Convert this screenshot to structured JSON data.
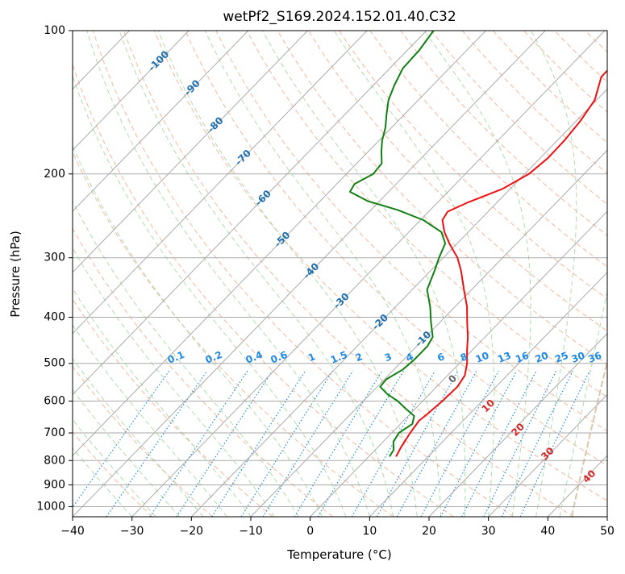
{
  "chart_data": {
    "type": "line",
    "subtype": "skew-t log-p diagram",
    "title": "wetPf2_S169.2024.152.01.40.C32",
    "xlabel": "Temperature (°C)",
    "ylabel": "Pressure (hPa)",
    "xlim": [
      -40,
      50
    ],
    "ylim": [
      1050,
      100
    ],
    "y_scale": "log",
    "grid": true,
    "x_ticks": [
      -40,
      -30,
      -20,
      -10,
      0,
      10,
      20,
      30,
      40,
      50
    ],
    "y_ticks": [
      100,
      200,
      300,
      400,
      500,
      600,
      700,
      800,
      900,
      1000
    ],
    "x_tick_labels": [
      "−40",
      "−30",
      "−20",
      "−10",
      "0",
      "10",
      "20",
      "30",
      "40",
      "50"
    ],
    "y_tick_labels": [
      "100",
      "200",
      "300",
      "400",
      "500",
      "600",
      "700",
      "800",
      "900",
      "1000"
    ],
    "colors": {
      "temperature": "#ee1111",
      "dewpoint": "#118011",
      "isotherm": "#aaaaaa",
      "dry_adiabat": "#f4a582",
      "moist_adiabat": "#a6d8a6",
      "mixing_ratio": "#1e88e5",
      "isotherm_label": "#1f6fb0",
      "mixing_label": "#1e88e5",
      "moist_label": "#d62728",
      "lifted_curve": "#d4b896"
    },
    "series": [
      {
        "role": "temperature",
        "color": "#ee1111",
        "points": [
          {
            "p": 785,
            "t": 4.6
          },
          {
            "p": 750,
            "t": 3.9
          },
          {
            "p": 700,
            "t": 3.1
          },
          {
            "p": 660,
            "t": 2.6
          },
          {
            "p": 640,
            "t": 2.9
          },
          {
            "p": 600,
            "t": 3.3
          },
          {
            "p": 560,
            "t": 3.5
          },
          {
            "p": 530,
            "t": 2.9
          },
          {
            "p": 500,
            "t": 1.3
          },
          {
            "p": 470,
            "t": -0.8
          },
          {
            "p": 440,
            "t": -2.9
          },
          {
            "p": 410,
            "t": -5.4
          },
          {
            "p": 380,
            "t": -8.0
          },
          {
            "p": 350,
            "t": -11.3
          },
          {
            "p": 320,
            "t": -14.8
          },
          {
            "p": 300,
            "t": -17.6
          },
          {
            "p": 280,
            "t": -21.3
          },
          {
            "p": 265,
            "t": -24.0
          },
          {
            "p": 250,
            "t": -26.3
          },
          {
            "p": 240,
            "t": -26.8
          },
          {
            "p": 230,
            "t": -25.0
          },
          {
            "p": 215,
            "t": -21.3
          },
          {
            "p": 200,
            "t": -19.3
          },
          {
            "p": 185,
            "t": -18.7
          },
          {
            "p": 170,
            "t": -18.8
          },
          {
            "p": 155,
            "t": -19.3
          },
          {
            "p": 140,
            "t": -20.3
          },
          {
            "p": 125,
            "t": -23.0
          },
          {
            "p": 112,
            "t": -23.1
          },
          {
            "p": 100,
            "t": -24.6
          }
        ]
      },
      {
        "role": "dewpoint",
        "color": "#118011",
        "points": [
          {
            "p": 785,
            "t": 3.5
          },
          {
            "p": 760,
            "t": 3.1
          },
          {
            "p": 730,
            "t": 1.7
          },
          {
            "p": 700,
            "t": 1.2
          },
          {
            "p": 670,
            "t": 2.0
          },
          {
            "p": 645,
            "t": 1.0
          },
          {
            "p": 620,
            "t": -1.9
          },
          {
            "p": 600,
            "t": -4.2
          },
          {
            "p": 580,
            "t": -7.1
          },
          {
            "p": 560,
            "t": -9.5
          },
          {
            "p": 540,
            "t": -9.7
          },
          {
            "p": 515,
            "t": -8.5
          },
          {
            "p": 490,
            "t": -8.2
          },
          {
            "p": 460,
            "t": -8.2
          },
          {
            "p": 440,
            "t": -8.8
          },
          {
            "p": 410,
            "t": -11.5
          },
          {
            "p": 380,
            "t": -14.2
          },
          {
            "p": 350,
            "t": -17.5
          },
          {
            "p": 320,
            "t": -19.3
          },
          {
            "p": 300,
            "t": -20.7
          },
          {
            "p": 280,
            "t": -22.0
          },
          {
            "p": 265,
            "t": -24.5
          },
          {
            "p": 250,
            "t": -29.5
          },
          {
            "p": 238,
            "t": -35.5
          },
          {
            "p": 228,
            "t": -42.0
          },
          {
            "p": 218,
            "t": -46.5
          },
          {
            "p": 210,
            "t": -47.0
          },
          {
            "p": 200,
            "t": -45.5
          },
          {
            "p": 190,
            "t": -45.8
          },
          {
            "p": 180,
            "t": -47.7
          },
          {
            "p": 170,
            "t": -49.5
          },
          {
            "p": 160,
            "t": -51.0
          },
          {
            "p": 150,
            "t": -53.0
          },
          {
            "p": 140,
            "t": -55.0
          },
          {
            "p": 130,
            "t": -56.5
          },
          {
            "p": 120,
            "t": -57.8
          },
          {
            "p": 110,
            "t": -58.0
          },
          {
            "p": 100,
            "t": -58.8
          }
        ]
      }
    ],
    "isotherm_labels": [
      {
        "text": "-100",
        "t": -100
      },
      {
        "text": "-90",
        "t": -90
      },
      {
        "text": "-80",
        "t": -80
      },
      {
        "text": "-70",
        "t": -70
      },
      {
        "text": "-60",
        "t": -60
      },
      {
        "text": "-50",
        "t": -50
      },
      {
        "text": "-40",
        "t": -40
      },
      {
        "text": "-30",
        "t": -30
      },
      {
        "text": "-20",
        "t": -20
      },
      {
        "text": "-10",
        "t": -10
      }
    ],
    "mixing_ratio_labels": [
      "0.1",
      "0.2",
      "0.4",
      "0.6",
      "1",
      "1.5",
      "2",
      "3",
      "4",
      "6",
      "8",
      "10",
      "13",
      "16",
      "20",
      "25",
      "30",
      "36"
    ],
    "mixing_ratio_values": [
      0.1,
      0.2,
      0.4,
      0.6,
      1,
      1.5,
      2,
      3,
      4,
      6,
      8,
      10,
      13,
      16,
      20,
      25,
      30,
      36
    ],
    "moist_adiabat_labels": [
      "0",
      "10",
      "20",
      "30",
      "40"
    ]
  }
}
